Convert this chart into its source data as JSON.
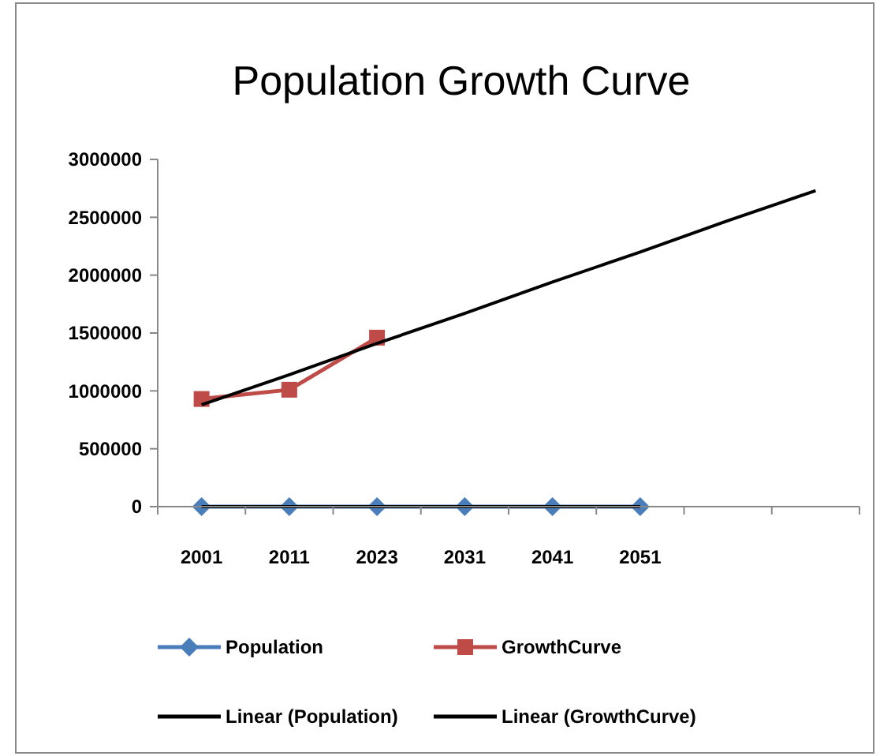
{
  "chart_data": {
    "type": "line",
    "title": "Population Growth Curve",
    "categories": [
      "2001",
      "2011",
      "2023",
      "2031",
      "2041",
      "2051",
      null,
      null
    ],
    "ylim": [
      0,
      3000000
    ],
    "yticks": [
      0,
      500000,
      1000000,
      1500000,
      2000000,
      2500000,
      3000000
    ],
    "grid": false,
    "legend": "bottom",
    "line_style": "solid",
    "series": [
      {
        "name": "Population",
        "color": "#4a7ebb",
        "marker": "diamond",
        "values": [
          0,
          0,
          0,
          0,
          0,
          0,
          null,
          null
        ]
      },
      {
        "name": "GrowthCurve",
        "color": "#be4b48",
        "marker": "square",
        "values": [
          930000,
          1010000,
          1460000,
          null,
          null,
          null,
          null,
          null
        ]
      },
      {
        "name": "Linear (Population)",
        "color": "#000000",
        "marker": "none",
        "values": [
          0,
          0,
          0,
          0,
          0,
          0,
          null,
          null
        ]
      },
      {
        "name": "Linear (GrowthCurve)",
        "color": "#000000",
        "marker": "none",
        "values": [
          880000,
          1140000,
          1410000,
          1670000,
          1940000,
          2200000,
          2470000,
          2730000
        ]
      }
    ]
  }
}
